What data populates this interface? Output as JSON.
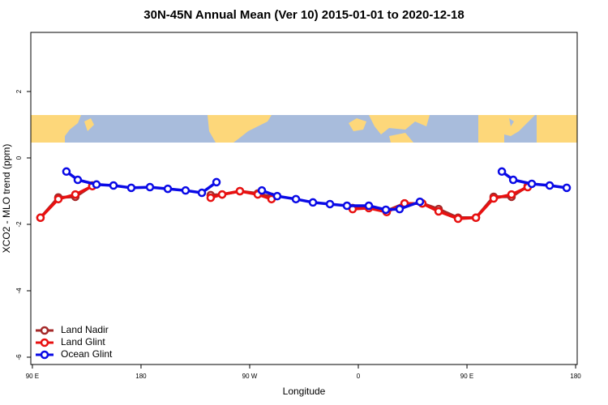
{
  "chart_data": {
    "type": "line",
    "title": "30N-45N Annual Mean (Ver 10)   2015-01-01 to 2020-12-18",
    "x_label": "Longitude",
    "y_label": "XCO2 - MLO trend (ppm)",
    "xlim": [
      88.7,
      541.3
    ],
    "ylim": [
      -6.22,
      3.78
    ],
    "xticks": [
      {
        "value": 90,
        "label": "90 E"
      },
      180,
      {
        "value": 270,
        "label": "90 W"
      },
      {
        "value": 360,
        "label": "0"
      },
      {
        "value": 450,
        "label": "90 E"
      },
      {
        "value": 540,
        "label": "180"
      }
    ],
    "yticks": [
      -6,
      -4,
      -2,
      0,
      2
    ],
    "legend_position": "bottom-left",
    "series": [
      {
        "name": "Land Nadir",
        "color": "#a52a2a",
        "x": [
          96.7,
          111.5,
          125.6,
          139.7,
          null,
          237.7,
          247.2,
          261.9,
          276.7,
          288.1,
          null,
          355.3,
          368.7,
          383.5,
          398.3,
          413.0,
          426.5,
          442.6,
          457.4,
          472.1,
          486.9,
          500.3
        ],
        "values": [
          -1.8,
          -1.19,
          -1.17,
          -0.83,
          null,
          -1.12,
          -1.1,
          -1.0,
          -1.07,
          -1.17,
          null,
          -1.51,
          -1.49,
          -1.59,
          -1.37,
          -1.37,
          -1.54,
          -1.8,
          -1.8,
          -1.17,
          -1.17,
          -0.85
        ]
      },
      {
        "name": "Land Glint",
        "color": "#e81010",
        "x": [
          96.7,
          111.5,
          125.6,
          139.7,
          null,
          237.7,
          247.2,
          261.9,
          276.7,
          288.1,
          null,
          355.3,
          368.7,
          383.5,
          398.3,
          413.0,
          426.5,
          442.6,
          457.4,
          472.1,
          486.9,
          500.3
        ],
        "values": [
          -1.8,
          -1.24,
          -1.1,
          -0.85,
          null,
          -1.2,
          -1.1,
          -1.0,
          -1.1,
          -1.24,
          null,
          -1.54,
          -1.51,
          -1.63,
          -1.37,
          -1.37,
          -1.61,
          -1.83,
          -1.8,
          -1.22,
          -1.1,
          -0.88
        ]
      },
      {
        "name": "Ocean Glint",
        "color": "#0a0ae6",
        "x": [
          118.2,
          127.6,
          143.1,
          157.2,
          171.9,
          187.4,
          202.2,
          216.9,
          230.4,
          242.5,
          null,
          280.1,
          292.8,
          308.3,
          322.4,
          336.5,
          350.6,
          368.7,
          382.8,
          394.2,
          411.0,
          null,
          478.9,
          488.3,
          503.7,
          518.5,
          532.6
        ],
        "values": [
          -0.41,
          -0.66,
          -0.8,
          -0.83,
          -0.9,
          -0.88,
          -0.93,
          -0.98,
          -1.05,
          -0.73,
          null,
          -0.98,
          -1.15,
          -1.24,
          -1.34,
          -1.39,
          -1.44,
          -1.44,
          -1.56,
          -1.54,
          -1.32,
          null,
          -0.41,
          -0.66,
          -0.78,
          -0.83,
          -0.9
        ]
      }
    ]
  }
}
